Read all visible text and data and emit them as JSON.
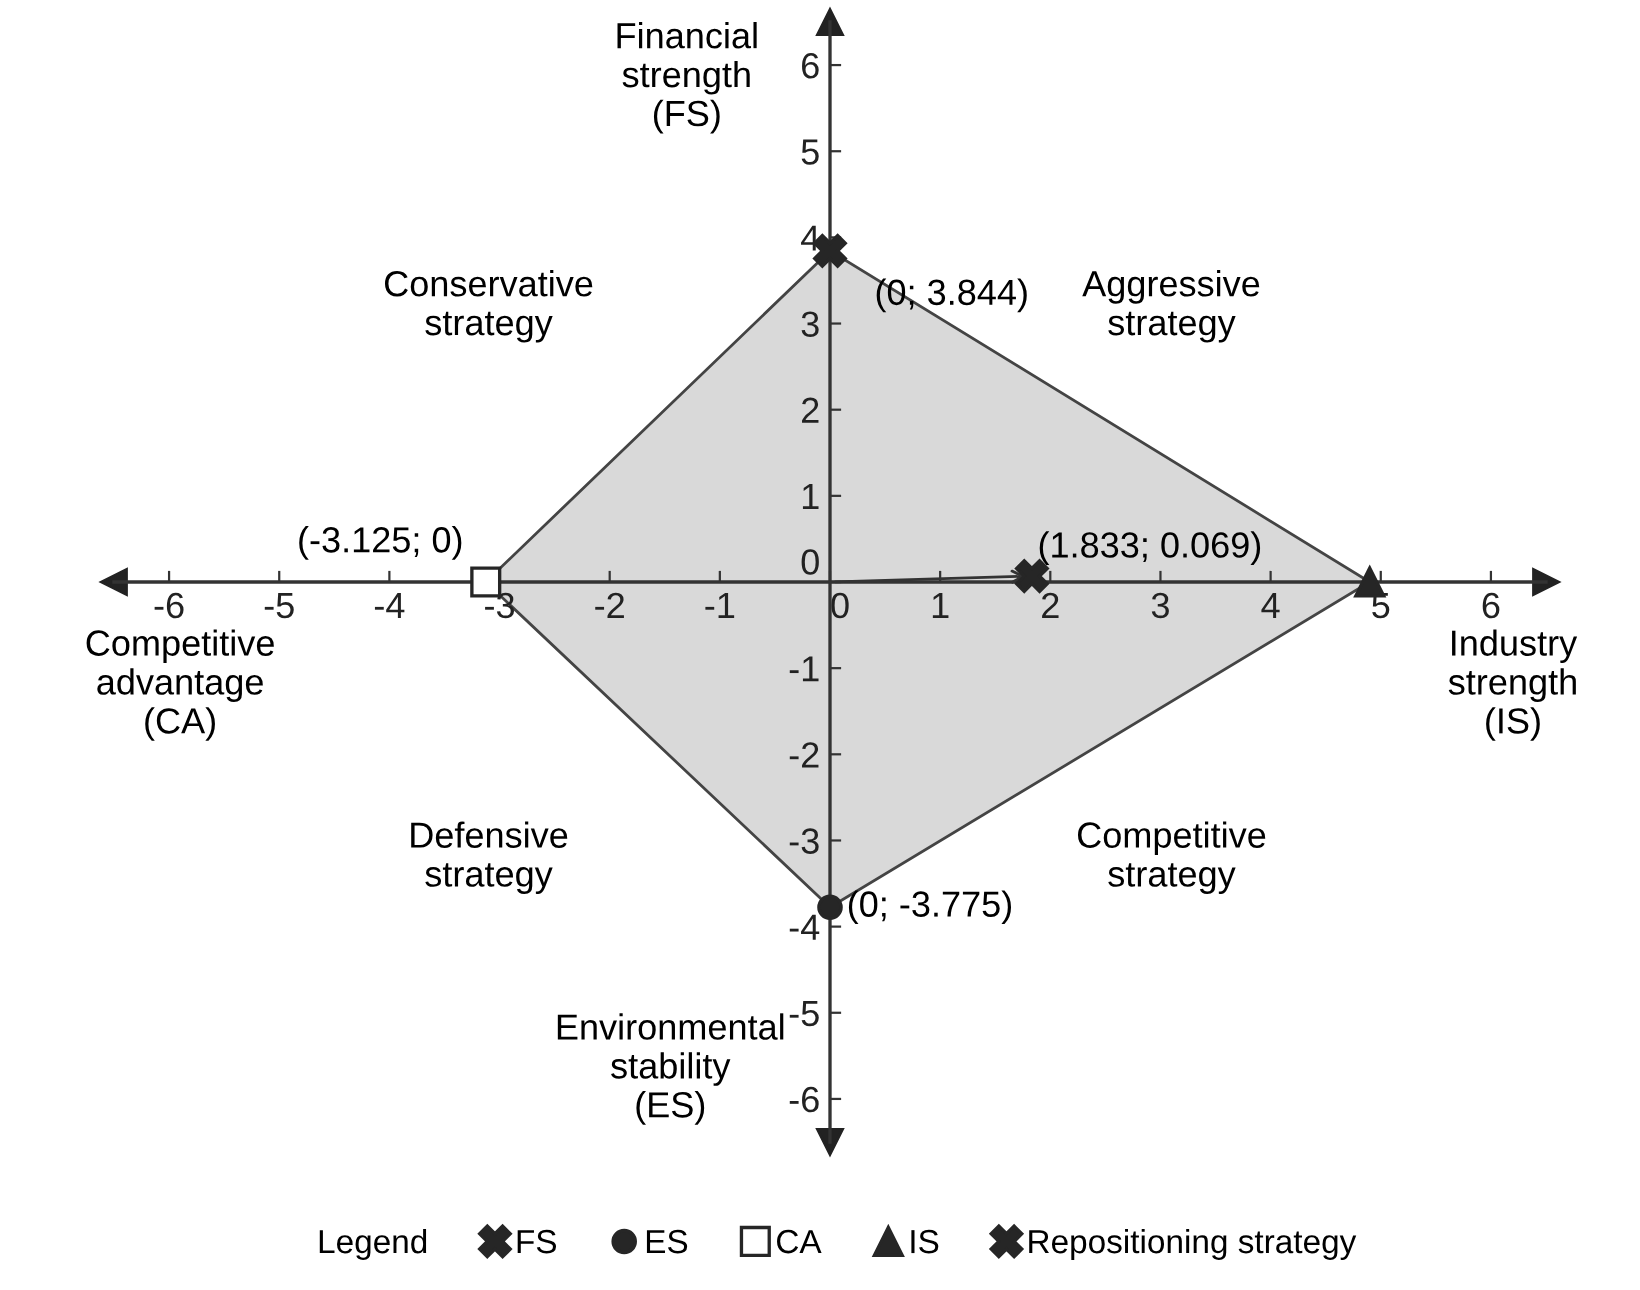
{
  "chart_data": {
    "type": "scatter",
    "xlabel": "Industry\nstrength\n(IS)",
    "ylabel": "Financial\nstrength\n(FS)",
    "annotations": [
      "Competitive\nadvantage\n(CA)",
      "Environmental\nstability\n(ES)",
      "Conservative\nstrategy",
      "Aggressive\nstrategy",
      "Defensive\nstrategy",
      "Competitive\nstrategy"
    ],
    "xlim": [
      -6.5,
      6.5
    ],
    "ylim": [
      -6.5,
      6.5
    ],
    "xticks": [
      -6,
      -5,
      -4,
      -3,
      -2,
      -1,
      0,
      1,
      2,
      3,
      4,
      5,
      6
    ],
    "yticks": [
      -6,
      -5,
      -4,
      -3,
      -2,
      -1,
      0,
      1,
      2,
      3,
      4,
      5,
      6
    ],
    "grid": false,
    "legend": "bottom",
    "legend_title": "Legend",
    "series": [
      {
        "type": "area",
        "color": "#d9d9d9",
        "x": [
          -3.125,
          0,
          4.9,
          0
        ],
        "values": [
          0,
          3.844,
          0,
          -3.775
        ]
      },
      {
        "name": "FS",
        "color": "#262626",
        "marker": "cross",
        "x": [
          0
        ],
        "values": [
          3.844
        ],
        "value_labels": [
          "(0; 3.844)"
        ]
      },
      {
        "name": "ES",
        "color": "#262626",
        "marker": "circle",
        "x": [
          0
        ],
        "values": [
          -3.775
        ],
        "value_labels": [
          "(0; -3.775)"
        ]
      },
      {
        "name": "CA",
        "color": "#262626",
        "marker": "square",
        "x": [
          -3.125
        ],
        "values": [
          0
        ],
        "value_labels": [
          "(-3.125; 0)"
        ]
      },
      {
        "name": "IS",
        "color": "#262626",
        "marker": "triangle",
        "x": [
          4.9
        ],
        "values": [
          0
        ]
      },
      {
        "name": "Repositioning strategy",
        "color": "#262626",
        "marker": "cross",
        "x": [
          1.833
        ],
        "values": [
          0.069
        ],
        "value_labels": [
          "(1.833; 0.069)"
        ]
      }
    ]
  }
}
